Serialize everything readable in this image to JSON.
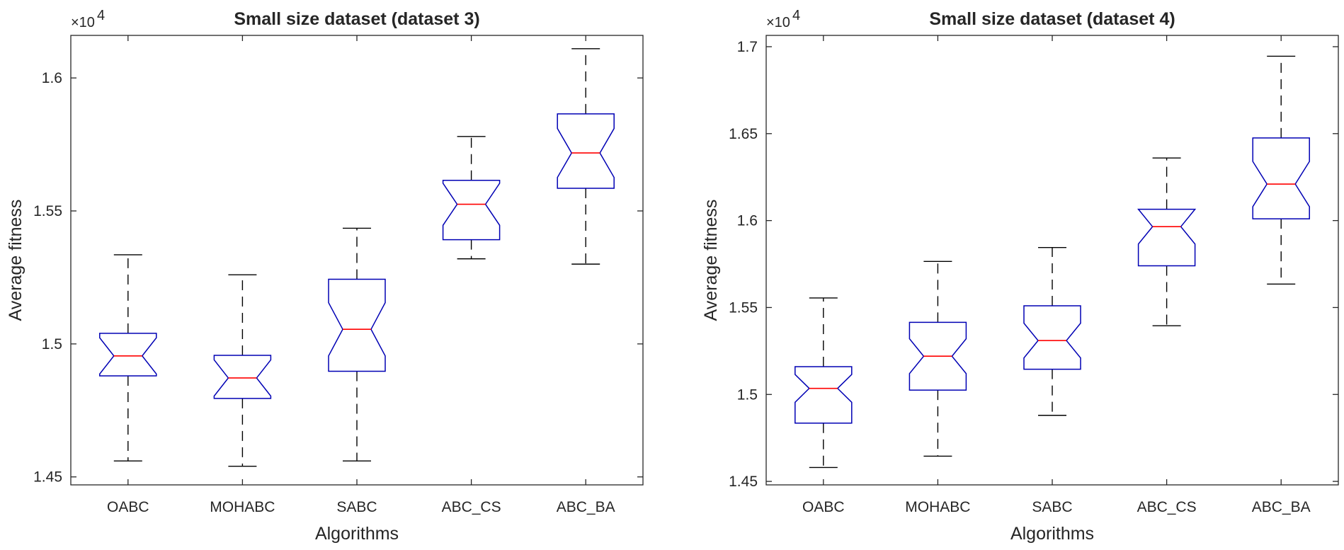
{
  "chart_data": [
    {
      "type": "boxplot",
      "title": "Small size dataset (dataset 3)",
      "xlabel": "Algorithms",
      "ylabel": "Average fitness",
      "exponent_label": "×10",
      "exponent": "4",
      "ylim": [
        1.447,
        1.616
      ],
      "yticks": [
        1.45,
        1.5,
        1.55,
        1.6
      ],
      "ytick_labels": [
        "1.45",
        "1.5",
        "1.55",
        "1.6"
      ],
      "categories": [
        "OABC",
        "MOHABC",
        "SABC",
        "ABC_CS",
        "ABC_BA"
      ],
      "boxes": [
        {
          "whisker_low": 1.456,
          "q1": 1.488,
          "median": 1.4955,
          "notch_low": 1.4887,
          "notch_high": 1.5023,
          "q3": 1.504,
          "whisker_high": 1.5335
        },
        {
          "whisker_low": 1.454,
          "q1": 1.4795,
          "median": 1.4872,
          "notch_low": 1.4804,
          "notch_high": 1.494,
          "q3": 1.4957,
          "whisker_high": 1.526
        },
        {
          "whisker_low": 1.456,
          "q1": 1.4897,
          "median": 1.5055,
          "notch_low": 1.4955,
          "notch_high": 1.5155,
          "q3": 1.5243,
          "whisker_high": 1.5435
        },
        {
          "whisker_low": 1.532,
          "q1": 1.5392,
          "median": 1.5525,
          "notch_low": 1.5446,
          "notch_high": 1.5604,
          "q3": 1.5615,
          "whisker_high": 1.578
        },
        {
          "whisker_low": 1.53,
          "q1": 1.5585,
          "median": 1.5718,
          "notch_low": 1.5626,
          "notch_high": 1.581,
          "q3": 1.5865,
          "whisker_high": 1.611
        }
      ],
      "colors": {
        "box": "#0000b4",
        "median": "#ff0000",
        "whisker": "#000000",
        "axis": "#262626"
      }
    },
    {
      "type": "boxplot",
      "title": "Small size dataset (dataset 4)",
      "xlabel": "Algorithms",
      "ylabel": "Average fitness",
      "exponent_label": "×10",
      "exponent": "4",
      "ylim": [
        1.448,
        1.7065
      ],
      "yticks": [
        1.45,
        1.5,
        1.55,
        1.6,
        1.65,
        1.7
      ],
      "ytick_labels": [
        "1.45",
        "1.5",
        "1.55",
        "1.6",
        "1.65",
        "1.7"
      ],
      "categories": [
        "OABC",
        "MOHABC",
        "SABC",
        "ABC_CS",
        "ABC_BA"
      ],
      "boxes": [
        {
          "whisker_low": 1.458,
          "q1": 1.4835,
          "median": 1.5035,
          "notch_low": 1.4955,
          "notch_high": 1.5115,
          "q3": 1.516,
          "whisker_high": 1.5555
        },
        {
          "whisker_low": 1.4645,
          "q1": 1.5025,
          "median": 1.522,
          "notch_low": 1.512,
          "notch_high": 1.532,
          "q3": 1.5415,
          "whisker_high": 1.5765
        },
        {
          "whisker_low": 1.488,
          "q1": 1.5145,
          "median": 1.531,
          "notch_low": 1.521,
          "notch_high": 1.541,
          "q3": 1.551,
          "whisker_high": 1.5845
        },
        {
          "whisker_low": 1.5395,
          "q1": 1.574,
          "median": 1.5965,
          "notch_low": 1.5865,
          "notch_high": 1.6065,
          "q3": 1.6065,
          "whisker_high": 1.636
        },
        {
          "whisker_low": 1.5635,
          "q1": 1.601,
          "median": 1.621,
          "notch_low": 1.608,
          "notch_high": 1.634,
          "q3": 1.6475,
          "whisker_high": 1.6945
        }
      ],
      "colors": {
        "box": "#0000b4",
        "median": "#ff0000",
        "whisker": "#000000",
        "axis": "#262626"
      }
    }
  ]
}
